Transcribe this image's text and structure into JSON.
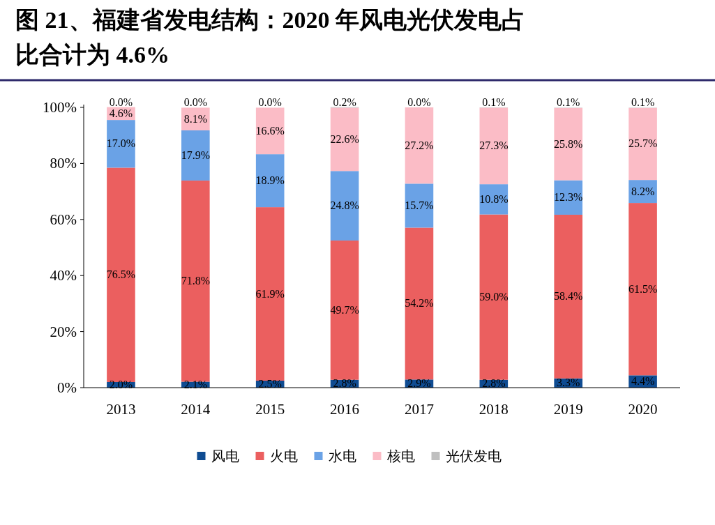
{
  "chart_data": {
    "type": "bar",
    "stacked": true,
    "title": "图 21、福建省发电结构：2020 年风电光伏发电占比合计为 4.6%",
    "categories": [
      "2013",
      "2014",
      "2015",
      "2016",
      "2017",
      "2018",
      "2019",
      "2020"
    ],
    "series": [
      {
        "name": "风电",
        "color": "#0f4c92",
        "values": [
          2.0,
          2.1,
          2.5,
          2.8,
          2.9,
          2.8,
          3.3,
          4.4
        ],
        "value_labels": [
          "2.0%",
          "2.1%",
          "2.5%",
          "2.8%",
          "2.9%",
          "2.8%",
          "3.3%",
          "4.4%"
        ]
      },
      {
        "name": "火电",
        "color": "#eb5f5f",
        "values": [
          76.5,
          71.8,
          61.9,
          49.7,
          54.2,
          59.0,
          58.4,
          61.5
        ],
        "value_labels": [
          "76.5%",
          "71.8%",
          "61.9%",
          "49.7%",
          "54.2%",
          "59.0%",
          "58.4%",
          "61.5%"
        ]
      },
      {
        "name": "水电",
        "color": "#6aa2e6",
        "values": [
          17.0,
          17.9,
          18.9,
          24.8,
          15.7,
          10.8,
          12.3,
          8.2
        ],
        "value_labels": [
          "17.0%",
          "17.9%",
          "18.9%",
          "24.8%",
          "15.7%",
          "10.8%",
          "12.3%",
          "8.2%"
        ]
      },
      {
        "name": "核电",
        "color": "#fbbcc6",
        "values": [
          4.6,
          8.1,
          16.6,
          22.6,
          27.2,
          27.3,
          25.8,
          25.7
        ],
        "value_labels": [
          "4.6%",
          "8.1%",
          "16.6%",
          "22.6%",
          "27.2%",
          "27.3%",
          "25.8%",
          "25.7%"
        ]
      },
      {
        "name": "光伏发电",
        "color": "#bfbfbf",
        "values": [
          0.0,
          0.0,
          0.0,
          0.2,
          0.0,
          0.1,
          0.1,
          0.1
        ],
        "value_labels": [
          "0.0%",
          "0.0%",
          "0.0%",
          "0.2%",
          "0.0%",
          "0.1%",
          "0.1%",
          "0.1%"
        ]
      }
    ],
    "ylim": [
      0,
      101
    ],
    "yticks": [
      {
        "value": 0,
        "label": "0%"
      },
      {
        "value": 20,
        "label": "20%"
      },
      {
        "value": 40,
        "label": "40%"
      },
      {
        "value": 60,
        "label": "60%"
      },
      {
        "value": 80,
        "label": "80%"
      },
      {
        "value": 100,
        "label": "100%"
      }
    ],
    "grid": false,
    "legend": "bottom"
  }
}
